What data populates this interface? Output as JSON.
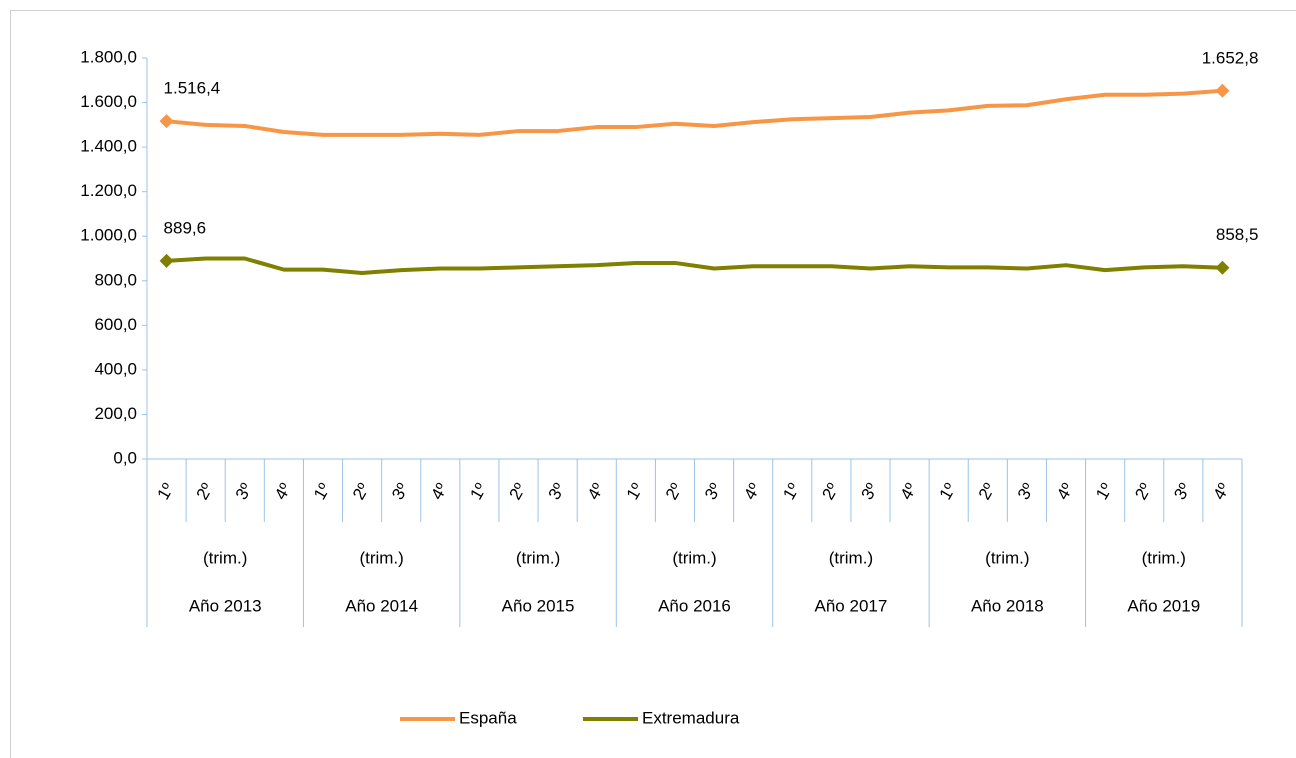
{
  "chart_data": {
    "type": "line",
    "categories": [
      "1º",
      "2º",
      "3º",
      "4º",
      "1º",
      "2º",
      "3º",
      "4º",
      "1º",
      "2º",
      "3º",
      "4º",
      "1º",
      "2º",
      "3º",
      "4º",
      "1º",
      "2º",
      "3º",
      "4º",
      "1º",
      "2º",
      "3º",
      "4º",
      "1º",
      "2º",
      "3º",
      "4º"
    ],
    "groups": [
      {
        "label": "Año 2013",
        "sublabel": "(trim.)"
      },
      {
        "label": "Año 2014",
        "sublabel": "(trim.)"
      },
      {
        "label": "Año 2015",
        "sublabel": "(trim.)"
      },
      {
        "label": "Año 2016",
        "sublabel": "(trim.)"
      },
      {
        "label": "Año 2017",
        "sublabel": "(trim.)"
      },
      {
        "label": "Año 2018",
        "sublabel": "(trim.)"
      },
      {
        "label": "Año 2019",
        "sublabel": "(trim.)"
      }
    ],
    "series": [
      {
        "name": "España",
        "color": "#f79646",
        "values": [
          1516.4,
          1500,
          1495,
          1468,
          1455,
          1455,
          1455,
          1460,
          1455,
          1472,
          1472,
          1490,
          1490,
          1505,
          1495,
          1512,
          1525,
          1530,
          1535,
          1555,
          1565,
          1585,
          1588,
          1615,
          1635,
          1635,
          1640,
          1652.8
        ],
        "value_labels": [
          "1.516,4",
          null,
          null,
          null,
          null,
          null,
          null,
          null,
          null,
          null,
          null,
          null,
          null,
          null,
          null,
          null,
          null,
          null,
          null,
          null,
          null,
          null,
          null,
          null,
          null,
          null,
          null,
          "1.652,8"
        ]
      },
      {
        "name": "Extremadura",
        "color": "#7f7f00",
        "values": [
          889.6,
          900,
          900,
          850,
          850,
          835,
          848,
          855,
          855,
          860,
          865,
          870,
          880,
          880,
          855,
          865,
          865,
          865,
          855,
          865,
          860,
          860,
          855,
          870,
          848,
          860,
          865,
          858.5
        ],
        "value_labels": [
          "889,6",
          null,
          null,
          null,
          null,
          null,
          null,
          null,
          null,
          null,
          null,
          null,
          null,
          null,
          null,
          null,
          null,
          null,
          null,
          null,
          null,
          null,
          null,
          null,
          null,
          null,
          null,
          "858,5"
        ]
      }
    ],
    "ylim": [
      0,
      1800
    ],
    "yticks": [
      {
        "value": 0,
        "label": "0,0"
      },
      {
        "value": 200,
        "label": "200,0"
      },
      {
        "value": 400,
        "label": "400,0"
      },
      {
        "value": 600,
        "label": "600,0"
      },
      {
        "value": 800,
        "label": "800,0"
      },
      {
        "value": 1000,
        "label": "1.000,0"
      },
      {
        "value": 1200,
        "label": "1.200,0"
      },
      {
        "value": 1400,
        "label": "1.400,0"
      },
      {
        "value": 1600,
        "label": "1.600,0"
      },
      {
        "value": 1800,
        "label": "1.800,0"
      }
    ],
    "grid": false,
    "legend": "bottom"
  }
}
